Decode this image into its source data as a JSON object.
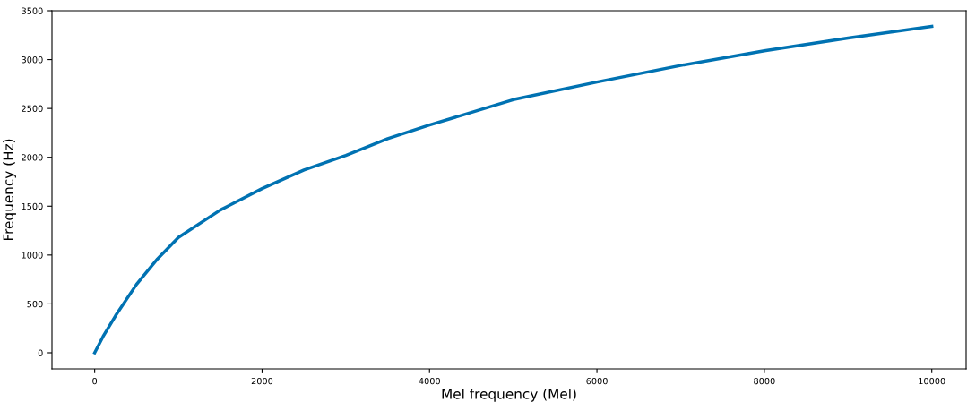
{
  "chart_data": {
    "type": "line",
    "xlabel": "Mel frequency (Mel)",
    "ylabel": "Frequency (Hz)",
    "x": [
      0,
      100,
      250,
      500,
      750,
      1000,
      1500,
      2000,
      2500,
      3000,
      3500,
      4000,
      5000,
      6000,
      7000,
      8000,
      9000,
      10000
    ],
    "series": [
      {
        "color": "#0072b2",
        "values": [
          0,
          165,
          380,
          700,
          960,
          1180,
          1460,
          1680,
          1870,
          2020,
          2190,
          2330,
          2590,
          2770,
          2940,
          3090,
          3220,
          3340
        ]
      }
    ],
    "xlim": [
      -510,
      10410
    ],
    "ylim": [
      -165,
      3500
    ],
    "xticks": [
      0,
      2000,
      4000,
      6000,
      8000,
      10000
    ],
    "yticks": [
      0,
      500,
      1000,
      1500,
      2000,
      2500,
      3000,
      3500
    ],
    "grid": false,
    "legend": false
  }
}
